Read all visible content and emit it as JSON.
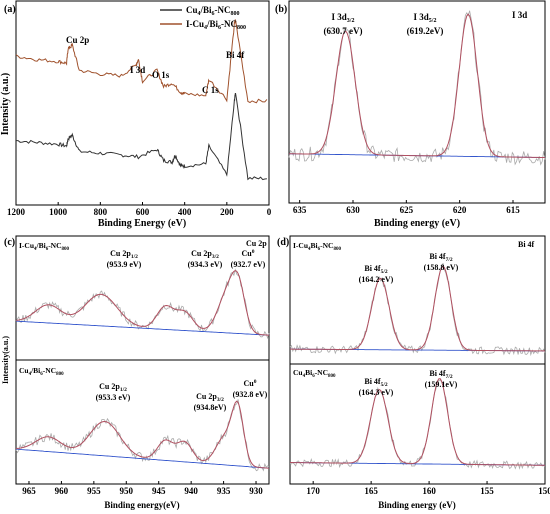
{
  "chart_data": [
    {
      "panel": "(a)",
      "type": "line",
      "xlabel": "Binding Energy (eV)",
      "ylabel": "Intensity (a.u.)",
      "xlim": [
        1200,
        0
      ],
      "xticks": [
        "1200",
        "1000",
        "800",
        "600",
        "400",
        "200",
        "0"
      ],
      "legend": {
        "placement": "top-right"
      },
      "annotations": [
        "Cu 2p",
        "I 3d",
        "O 1s",
        "C 1s",
        "Bi 4f"
      ],
      "series": [
        {
          "name": "Cu4/Bi6-NC800",
          "legend_main": "Cu",
          "legend_s1": "4",
          "legend_mid": "/Bi",
          "legend_s2": "6",
          "legend_end": "-NC",
          "legend_s3": "800",
          "color": "#333333",
          "x": [
            1200,
            1100,
            1000,
            960,
            953,
            933,
            900,
            800,
            700,
            620,
            531,
            500,
            460,
            445,
            420,
            400,
            300,
            285,
            200,
            164,
            159,
            100,
            0
          ],
          "y": [
            0.33,
            0.32,
            0.31,
            0.3,
            0.34,
            0.36,
            0.27,
            0.26,
            0.25,
            0.24,
            0.28,
            0.22,
            0.21,
            0.25,
            0.19,
            0.19,
            0.2,
            0.3,
            0.14,
            0.55,
            0.6,
            0.12,
            0.12
          ]
        },
        {
          "name": "I-Cu4/Bi6-NC800",
          "legend_main": "I-Cu",
          "legend_s1": "4",
          "legend_mid": "/Bi",
          "legend_s2": "6",
          "legend_end": "-NC",
          "legend_s3": "800",
          "color": "#a0522d",
          "x": [
            1200,
            1100,
            1000,
            960,
            953,
            933,
            900,
            800,
            700,
            631,
            619,
            600,
            531,
            500,
            460,
            420,
            400,
            300,
            285,
            200,
            164,
            159,
            100,
            0
          ],
          "y": [
            0.8,
            0.78,
            0.77,
            0.76,
            0.84,
            0.86,
            0.72,
            0.7,
            0.69,
            0.75,
            0.78,
            0.66,
            0.72,
            0.63,
            0.65,
            0.6,
            0.59,
            0.58,
            0.67,
            0.56,
            0.98,
            1.0,
            0.55,
            0.55
          ]
        }
      ]
    },
    {
      "panel": "(b)",
      "type": "line",
      "title": "I 3d",
      "xlabel": "Binding energy (eV)",
      "xlim": [
        636,
        612
      ],
      "xticks": [
        "635",
        "630",
        "625",
        "620",
        "615"
      ],
      "peaks": [
        {
          "label_main": "I 3d",
          "label_sub": "3/2",
          "value": "(630.7 eV)",
          "center": 630.7,
          "height": 0.78
        },
        {
          "label_main": "I 3d",
          "label_sub": "5/2",
          "value": "(619.2eV)",
          "center": 619.2,
          "height": 0.9
        }
      ]
    },
    {
      "panel": "(c)",
      "type": "line",
      "title": "Cu 2p",
      "xlabel": "Binding energy(eV)",
      "ylabel": "Intensity(a.u.)",
      "xlim": [
        967,
        928
      ],
      "xticks": [
        "965",
        "960",
        "955",
        "950",
        "945",
        "940",
        "935",
        "930"
      ],
      "subpanels": [
        {
          "label": "I-Cu4/Bi6-NC800",
          "label_main": "I-Cu",
          "label_s1": "4",
          "label_mid": "/Bi",
          "label_s2": "6",
          "label_end": "-NC",
          "label_s3": "800",
          "peaks": [
            {
              "label_main": "Cu 2p",
              "label_sub": "1/2",
              "value": "(953.9 eV)",
              "center": 953.9
            },
            {
              "label_main": "Cu 2p",
              "label_sub": "3/2",
              "value": "(934.3 eV)",
              "center": 934.3
            },
            {
              "label_main": "Cu",
              "label_sup": "0",
              "value": "(932.7 eV)",
              "center": 932.7
            }
          ]
        },
        {
          "label": "Cu4/Bi6-NC800",
          "label_main": "Cu",
          "label_s1": "4",
          "label_mid": "/Bi",
          "label_s2": "6",
          "label_end": "-NC",
          "label_s3": "800",
          "peaks": [
            {
              "label_main": "Cu 2p",
              "label_sub": "1/2",
              "value": "(953.3 eV)",
              "center": 953.3
            },
            {
              "label_main": "Cu 2p",
              "label_sub": "3/2",
              "value": "(934.8eV)",
              "center": 934.8
            },
            {
              "label_main": "Cu",
              "label_sup": "0",
              "value": "(932.8 eV)",
              "center": 932.8
            }
          ]
        }
      ]
    },
    {
      "panel": "(d)",
      "type": "line",
      "title": "Bi 4f",
      "xlabel": "Binding energy (eV)",
      "xlim": [
        172,
        150
      ],
      "xticks": [
        "170",
        "165",
        "160",
        "155",
        "150"
      ],
      "subpanels": [
        {
          "label": "I-Cu4Bi6-NC800",
          "label_main": "I-Cu",
          "label_s1": "4",
          "label_mid": "Bi",
          "label_s2": "6",
          "label_end": "-NC",
          "label_s3": "800",
          "peaks": [
            {
              "label_main": "Bi 4f",
              "label_sub": "5/2",
              "value": "(164.2 eV)",
              "center": 164.2
            },
            {
              "label_main": "Bi 4f",
              "label_sub": "7/2",
              "value": "(158.8 eV)",
              "center": 158.8
            }
          ]
        },
        {
          "label": "Cu4Bi6-NC800",
          "label_main": "Cu",
          "label_s1": "4",
          "label_mid": "Bi",
          "label_s2": "6",
          "label_end": "-NC",
          "label_s3": "800",
          "peaks": [
            {
              "label_main": "Bi 4f",
              "label_sub": "5/2",
              "value": "(164.3 eV)",
              "center": 164.3
            },
            {
              "label_main": "Bi 4f",
              "label_sub": "7/2",
              "value": "(159.1eV)",
              "center": 159.1
            }
          ]
        }
      ]
    }
  ],
  "colors": {
    "raw": "#aaaaaa",
    "fit": "#b05060",
    "background": "#3355cc",
    "envelope": "#555555"
  }
}
